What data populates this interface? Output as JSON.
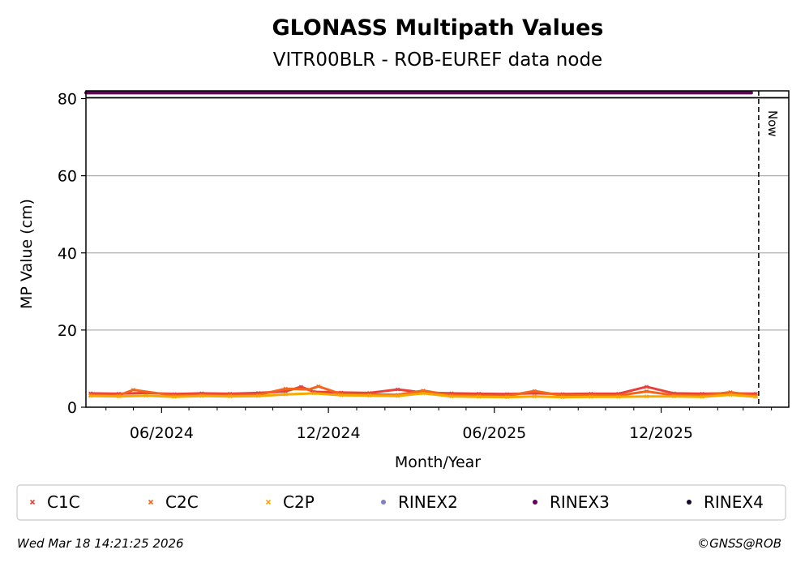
{
  "chart_data": {
    "type": "scatter",
    "title": "GLONASS Multipath Values",
    "subtitle": "VITR00BLR - ROB-EUREF data node",
    "xlabel": "Month/Year",
    "ylabel": "MP Value (cm)",
    "xlim": [
      "2024-03-10",
      "2026-04-20"
    ],
    "ylim": [
      0,
      82
    ],
    "x_ticks": [
      {
        "date": "2024-06-01",
        "label": "06/2024"
      },
      {
        "date": "2024-12-01",
        "label": "12/2024"
      },
      {
        "date": "2025-06-01",
        "label": "06/2025"
      },
      {
        "date": "2025-12-01",
        "label": "12/2025"
      }
    ],
    "y_ticks": [
      0,
      20,
      40,
      60,
      80
    ],
    "grid": "horizontal",
    "legend_position": "bottom",
    "now_line": {
      "date": "2026-03-18",
      "label": "Now"
    },
    "series": [
      {
        "name": "C1C",
        "color": "#e8403a",
        "marker": "x",
        "points": [
          [
            "2024-03-15",
            3.6
          ],
          [
            "2024-04-15",
            3.5
          ],
          [
            "2024-05-15",
            3.7
          ],
          [
            "2024-06-15",
            3.4
          ],
          [
            "2024-07-15",
            3.6
          ],
          [
            "2024-08-15",
            3.5
          ],
          [
            "2024-09-15",
            3.7
          ],
          [
            "2024-10-15",
            4.1
          ],
          [
            "2024-11-01",
            5.3
          ],
          [
            "2024-11-15",
            4.0
          ],
          [
            "2024-12-15",
            3.8
          ],
          [
            "2025-01-15",
            3.7
          ],
          [
            "2025-02-15",
            4.6
          ],
          [
            "2025-03-15",
            3.8
          ],
          [
            "2025-04-15",
            3.6
          ],
          [
            "2025-05-15",
            3.5
          ],
          [
            "2025-06-15",
            3.4
          ],
          [
            "2025-07-15",
            3.6
          ],
          [
            "2025-08-15",
            3.4
          ],
          [
            "2025-09-15",
            3.5
          ],
          [
            "2025-10-15",
            3.5
          ],
          [
            "2025-11-15",
            5.3
          ],
          [
            "2025-12-15",
            3.6
          ],
          [
            "2026-01-15",
            3.5
          ],
          [
            "2026-02-15",
            3.6
          ],
          [
            "2026-03-15",
            3.5
          ]
        ]
      },
      {
        "name": "C2C",
        "color": "#f2661c",
        "marker": "x",
        "points": [
          [
            "2024-03-15",
            3.2
          ],
          [
            "2024-04-15",
            3.1
          ],
          [
            "2024-05-01",
            4.5
          ],
          [
            "2024-06-15",
            3.0
          ],
          [
            "2024-07-15",
            3.2
          ],
          [
            "2024-08-15",
            3.1
          ],
          [
            "2024-09-15",
            3.2
          ],
          [
            "2024-10-15",
            4.8
          ],
          [
            "2024-11-10",
            4.6
          ],
          [
            "2024-11-20",
            5.4
          ],
          [
            "2024-12-15",
            3.4
          ],
          [
            "2025-01-15",
            3.3
          ],
          [
            "2025-02-15",
            3.2
          ],
          [
            "2025-03-15",
            4.3
          ],
          [
            "2025-04-15",
            3.1
          ],
          [
            "2025-05-15",
            3.0
          ],
          [
            "2025-06-15",
            2.9
          ],
          [
            "2025-07-15",
            4.2
          ],
          [
            "2025-08-15",
            3.0
          ],
          [
            "2025-09-15",
            3.1
          ],
          [
            "2025-10-15",
            3.0
          ],
          [
            "2025-11-15",
            4.1
          ],
          [
            "2025-12-15",
            3.1
          ],
          [
            "2026-01-15",
            3.0
          ],
          [
            "2026-02-15",
            3.9
          ],
          [
            "2026-03-15",
            3.0
          ]
        ]
      },
      {
        "name": "C2P",
        "color": "#f5a800",
        "marker": "x",
        "points": [
          [
            "2024-03-15",
            2.9
          ],
          [
            "2024-04-15",
            2.8
          ],
          [
            "2024-05-15",
            3.0
          ],
          [
            "2024-06-15",
            2.7
          ],
          [
            "2024-07-15",
            2.9
          ],
          [
            "2024-08-15",
            2.8
          ],
          [
            "2024-09-15",
            2.9
          ],
          [
            "2024-10-15",
            3.3
          ],
          [
            "2024-11-15",
            3.6
          ],
          [
            "2024-12-15",
            3.1
          ],
          [
            "2025-01-15",
            3.0
          ],
          [
            "2025-02-15",
            2.9
          ],
          [
            "2025-03-15",
            3.6
          ],
          [
            "2025-04-15",
            2.8
          ],
          [
            "2025-05-15",
            2.7
          ],
          [
            "2025-06-15",
            2.6
          ],
          [
            "2025-07-15",
            2.8
          ],
          [
            "2025-08-15",
            2.6
          ],
          [
            "2025-09-15",
            2.7
          ],
          [
            "2025-10-15",
            2.7
          ],
          [
            "2025-11-15",
            2.8
          ],
          [
            "2025-12-15",
            2.8
          ],
          [
            "2026-01-15",
            2.7
          ],
          [
            "2026-02-15",
            3.2
          ],
          [
            "2026-03-15",
            2.7
          ]
        ]
      },
      {
        "name": "RINEX2",
        "color": "#8080c0",
        "marker": "o",
        "points": []
      },
      {
        "name": "RINEX3",
        "color": "#650060",
        "marker": "o",
        "points": [
          [
            "2024-03-10",
            81.5
          ],
          [
            "2026-03-10",
            81.5
          ]
        ]
      },
      {
        "name": "RINEX4",
        "color": "#1a0a2a",
        "marker": "o",
        "points": []
      }
    ]
  },
  "footer": {
    "timestamp": "Wed Mar 18 14:21:25 2026",
    "copyright": "©GNSS@ROB"
  }
}
